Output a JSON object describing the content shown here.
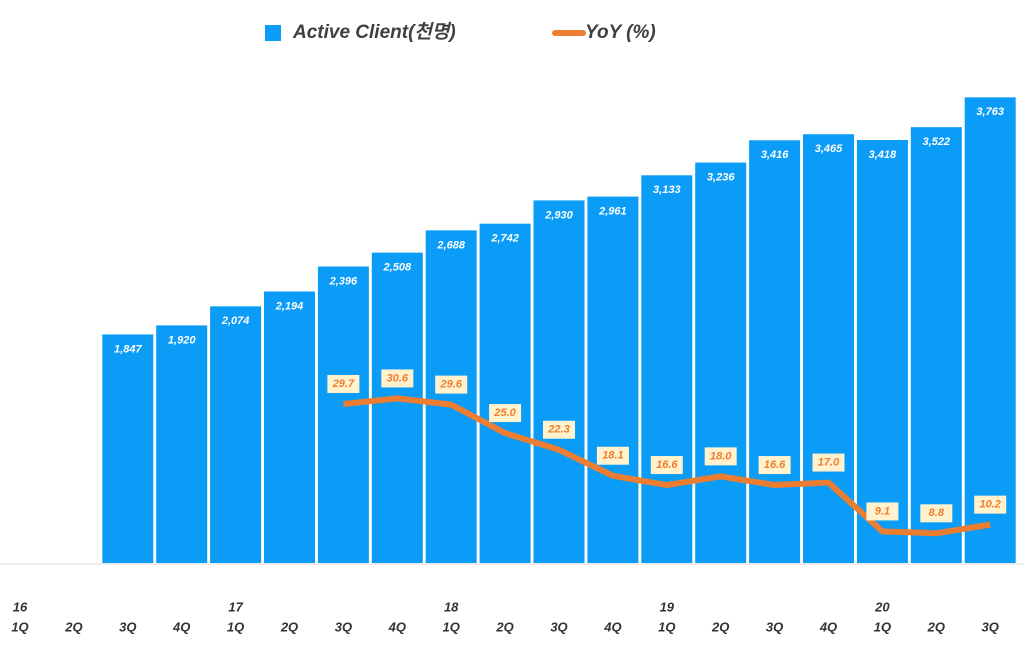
{
  "chart_data": {
    "type": "bar-line",
    "categories": [
      "1Q",
      "2Q",
      "3Q",
      "4Q",
      "1Q",
      "2Q",
      "3Q",
      "4Q",
      "1Q",
      "2Q",
      "3Q",
      "4Q",
      "1Q",
      "2Q",
      "3Q",
      "4Q",
      "1Q",
      "2Q",
      "3Q"
    ],
    "years": [
      "16",
      null,
      null,
      null,
      "17",
      null,
      null,
      null,
      "18",
      null,
      null,
      null,
      "19",
      null,
      null,
      null,
      "20",
      null,
      null
    ],
    "series": [
      {
        "name": "Active Client(천명)",
        "type": "bar",
        "color": "#0a9cf7",
        "values": [
          null,
          null,
          1847,
          1920,
          2074,
          2194,
          2396,
          2508,
          2688,
          2742,
          2930,
          2961,
          3133,
          3236,
          3416,
          3465,
          3418,
          3522,
          3763
        ],
        "value_labels": [
          null,
          null,
          "1,847",
          "1,920",
          "2,074",
          "2,194",
          "2,396",
          "2,508",
          "2,688",
          "2,742",
          "2,930",
          "2,961",
          "3,133",
          "3,236",
          "3,416",
          "3,465",
          "3,418",
          "3,522",
          "3,763"
        ]
      },
      {
        "name": "YoY (%)",
        "type": "line",
        "axis": "y2",
        "color": "#ed7d31",
        "values": [
          null,
          null,
          null,
          null,
          null,
          null,
          29.7,
          30.6,
          29.6,
          25.0,
          22.3,
          18.1,
          16.6,
          18.0,
          16.6,
          17.0,
          9.1,
          8.8,
          10.2
        ],
        "value_labels": [
          null,
          null,
          null,
          null,
          null,
          null,
          "29.7",
          "30.6",
          "29.6",
          "25.0",
          "22.3",
          "18.1",
          "16.6",
          "18.0",
          "16.6",
          "17.0",
          "9.1",
          "8.8",
          "10.2"
        ]
      }
    ],
    "ylim": [
      0,
      4000
    ],
    "y2lim": [
      4,
      84
    ],
    "legend": "top"
  }
}
